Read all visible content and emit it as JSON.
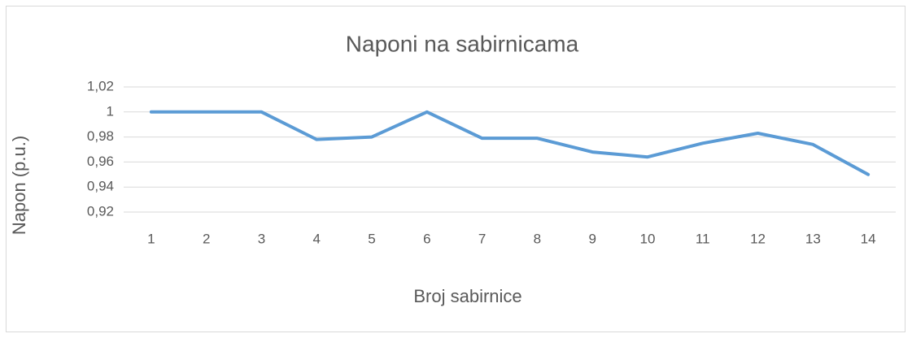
{
  "chart_data": {
    "type": "line",
    "title": "Naponi na sabirnicama",
    "x_label": "Broj sabirnice",
    "y_label": "Napon (p.u.)",
    "categories": [
      "1",
      "2",
      "3",
      "4",
      "5",
      "6",
      "7",
      "8",
      "9",
      "10",
      "11",
      "12",
      "13",
      "14"
    ],
    "values": [
      1.0,
      1.0,
      1.0,
      0.978,
      0.98,
      1.0,
      0.979,
      0.979,
      0.968,
      0.964,
      0.975,
      0.983,
      0.974,
      0.95
    ],
    "color": "#5b9bd5",
    "ylim": [
      0.92,
      1.02
    ],
    "yticks": [
      {
        "value": 0.92,
        "label": "0,92"
      },
      {
        "value": 0.94,
        "label": "0,94"
      },
      {
        "value": 0.96,
        "label": "0,96"
      },
      {
        "value": 0.98,
        "label": "0,98"
      },
      1,
      {
        "value": 1.02,
        "label": "1,02"
      }
    ],
    "grid": true
  }
}
